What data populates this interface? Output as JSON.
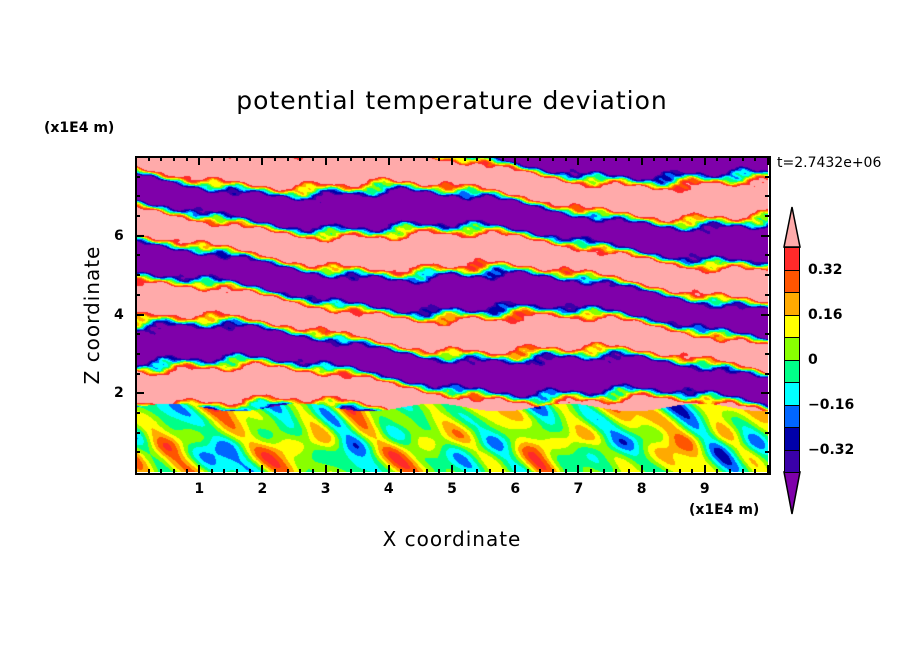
{
  "chart_data": {
    "type": "heatmap",
    "title": "potential temperature deviation",
    "xlabel": "X coordinate",
    "ylabel": "Z coordinate",
    "x_unit_label": "(x1E4 m)",
    "y_unit_label": "(x1E4 m)",
    "time_label": "t=2.7432e+06",
    "xlim": [
      0,
      10
    ],
    "ylim": [
      0,
      8
    ],
    "x_ticks": [
      1,
      2,
      3,
      4,
      5,
      6,
      7,
      8,
      9
    ],
    "x_tick_labels": [
      "1",
      "2",
      "3",
      "4",
      "5",
      "6",
      "7",
      "8",
      "9"
    ],
    "y_ticks": [
      2,
      4,
      6
    ],
    "y_tick_labels": [
      "2",
      "4",
      "6"
    ],
    "colorbar": {
      "levels": [
        -0.4,
        -0.32,
        -0.24,
        -0.16,
        -0.08,
        0,
        0.08,
        0.16,
        0.24,
        0.32,
        0.4
      ],
      "colors": [
        "#3a00a8",
        "#0000aa",
        "#0066ff",
        "#00ffff",
        "#00ff88",
        "#88ff00",
        "#ffff00",
        "#ffaa00",
        "#ff5500",
        "#ff2a2a"
      ],
      "over_color": "#ffaaaa",
      "under_color": "#7f00aa",
      "labels": [
        {
          "value": 0.32,
          "text": "0.32"
        },
        {
          "value": 0.16,
          "text": "0.16"
        },
        {
          "value": 0,
          "text": "0"
        },
        {
          "value": -0.16,
          "text": "−0.16"
        },
        {
          "value": -0.32,
          "text": "−0.32"
        }
      ]
    },
    "description_regions": {
      "upper_layer_z_above": 1.8,
      "upper_layer_pattern": "alternating bands beyond +0.4 and below -0.4",
      "lower_layer_range": [
        -0.3,
        0.3
      ]
    }
  }
}
